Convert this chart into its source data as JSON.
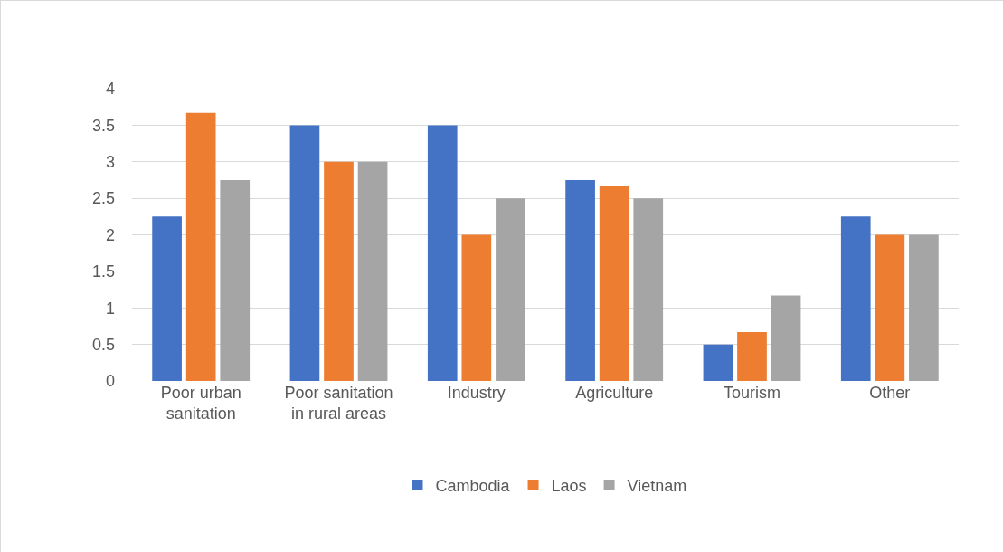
{
  "chart_data": {
    "type": "bar",
    "categories": [
      "Poor urban sanitation",
      "Poor sanitation in rural areas",
      "Industry",
      "Agriculture",
      "Tourism",
      "Other"
    ],
    "series": [
      {
        "name": "Cambodia",
        "color": "#4472c4",
        "values": [
          2.25,
          3.5,
          3.5,
          2.75,
          0.5,
          2.25
        ]
      },
      {
        "name": "Laos",
        "color": "#ed7d31",
        "values": [
          3.67,
          3,
          2,
          2.67,
          0.67,
          2
        ]
      },
      {
        "name": "Vietnam",
        "color": "#a5a5a5",
        "values": [
          2.75,
          3,
          2.5,
          2.5,
          1.17,
          2
        ]
      }
    ],
    "ylim": [
      0,
      4
    ],
    "yticks": [
      0,
      0.5,
      1,
      1.5,
      2,
      2.5,
      3,
      3.5,
      4
    ],
    "grid": "y",
    "legend": "bottom"
  }
}
